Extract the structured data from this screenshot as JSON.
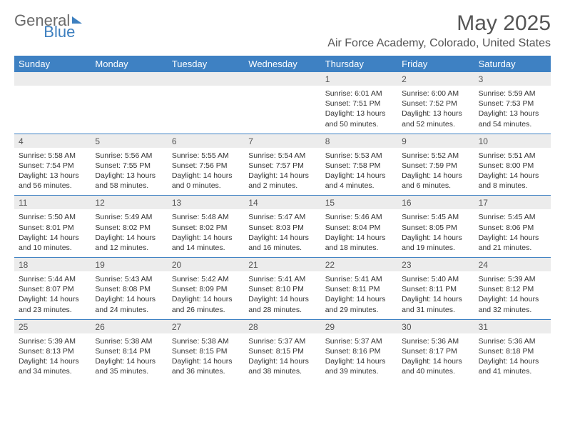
{
  "logo": {
    "part1": "General",
    "part2": "Blue"
  },
  "title": "May 2025",
  "subtitle": "Air Force Academy, Colorado, United States",
  "dayHeaders": [
    "Sunday",
    "Monday",
    "Tuesday",
    "Wednesday",
    "Thursday",
    "Friday",
    "Saturday"
  ],
  "colors": {
    "headerBg": "#3e81c3",
    "headerText": "#ffffff",
    "dayNumBg": "#ececec",
    "pageBg": "#ffffff",
    "titleColor": "#555555",
    "logoGray": "#6b6b6b",
    "logoBlue": "#3d7fbf"
  },
  "weeks": [
    {
      "nums": [
        "",
        "",
        "",
        "",
        "1",
        "2",
        "3"
      ],
      "cells": [
        null,
        null,
        null,
        null,
        {
          "sr": "Sunrise: 6:01 AM",
          "ss": "Sunset: 7:51 PM",
          "d1": "Daylight: 13 hours",
          "d2": "and 50 minutes."
        },
        {
          "sr": "Sunrise: 6:00 AM",
          "ss": "Sunset: 7:52 PM",
          "d1": "Daylight: 13 hours",
          "d2": "and 52 minutes."
        },
        {
          "sr": "Sunrise: 5:59 AM",
          "ss": "Sunset: 7:53 PM",
          "d1": "Daylight: 13 hours",
          "d2": "and 54 minutes."
        }
      ]
    },
    {
      "nums": [
        "4",
        "5",
        "6",
        "7",
        "8",
        "9",
        "10"
      ],
      "cells": [
        {
          "sr": "Sunrise: 5:58 AM",
          "ss": "Sunset: 7:54 PM",
          "d1": "Daylight: 13 hours",
          "d2": "and 56 minutes."
        },
        {
          "sr": "Sunrise: 5:56 AM",
          "ss": "Sunset: 7:55 PM",
          "d1": "Daylight: 13 hours",
          "d2": "and 58 minutes."
        },
        {
          "sr": "Sunrise: 5:55 AM",
          "ss": "Sunset: 7:56 PM",
          "d1": "Daylight: 14 hours",
          "d2": "and 0 minutes."
        },
        {
          "sr": "Sunrise: 5:54 AM",
          "ss": "Sunset: 7:57 PM",
          "d1": "Daylight: 14 hours",
          "d2": "and 2 minutes."
        },
        {
          "sr": "Sunrise: 5:53 AM",
          "ss": "Sunset: 7:58 PM",
          "d1": "Daylight: 14 hours",
          "d2": "and 4 minutes."
        },
        {
          "sr": "Sunrise: 5:52 AM",
          "ss": "Sunset: 7:59 PM",
          "d1": "Daylight: 14 hours",
          "d2": "and 6 minutes."
        },
        {
          "sr": "Sunrise: 5:51 AM",
          "ss": "Sunset: 8:00 PM",
          "d1": "Daylight: 14 hours",
          "d2": "and 8 minutes."
        }
      ]
    },
    {
      "nums": [
        "11",
        "12",
        "13",
        "14",
        "15",
        "16",
        "17"
      ],
      "cells": [
        {
          "sr": "Sunrise: 5:50 AM",
          "ss": "Sunset: 8:01 PM",
          "d1": "Daylight: 14 hours",
          "d2": "and 10 minutes."
        },
        {
          "sr": "Sunrise: 5:49 AM",
          "ss": "Sunset: 8:02 PM",
          "d1": "Daylight: 14 hours",
          "d2": "and 12 minutes."
        },
        {
          "sr": "Sunrise: 5:48 AM",
          "ss": "Sunset: 8:02 PM",
          "d1": "Daylight: 14 hours",
          "d2": "and 14 minutes."
        },
        {
          "sr": "Sunrise: 5:47 AM",
          "ss": "Sunset: 8:03 PM",
          "d1": "Daylight: 14 hours",
          "d2": "and 16 minutes."
        },
        {
          "sr": "Sunrise: 5:46 AM",
          "ss": "Sunset: 8:04 PM",
          "d1": "Daylight: 14 hours",
          "d2": "and 18 minutes."
        },
        {
          "sr": "Sunrise: 5:45 AM",
          "ss": "Sunset: 8:05 PM",
          "d1": "Daylight: 14 hours",
          "d2": "and 19 minutes."
        },
        {
          "sr": "Sunrise: 5:45 AM",
          "ss": "Sunset: 8:06 PM",
          "d1": "Daylight: 14 hours",
          "d2": "and 21 minutes."
        }
      ]
    },
    {
      "nums": [
        "18",
        "19",
        "20",
        "21",
        "22",
        "23",
        "24"
      ],
      "cells": [
        {
          "sr": "Sunrise: 5:44 AM",
          "ss": "Sunset: 8:07 PM",
          "d1": "Daylight: 14 hours",
          "d2": "and 23 minutes."
        },
        {
          "sr": "Sunrise: 5:43 AM",
          "ss": "Sunset: 8:08 PM",
          "d1": "Daylight: 14 hours",
          "d2": "and 24 minutes."
        },
        {
          "sr": "Sunrise: 5:42 AM",
          "ss": "Sunset: 8:09 PM",
          "d1": "Daylight: 14 hours",
          "d2": "and 26 minutes."
        },
        {
          "sr": "Sunrise: 5:41 AM",
          "ss": "Sunset: 8:10 PM",
          "d1": "Daylight: 14 hours",
          "d2": "and 28 minutes."
        },
        {
          "sr": "Sunrise: 5:41 AM",
          "ss": "Sunset: 8:11 PM",
          "d1": "Daylight: 14 hours",
          "d2": "and 29 minutes."
        },
        {
          "sr": "Sunrise: 5:40 AM",
          "ss": "Sunset: 8:11 PM",
          "d1": "Daylight: 14 hours",
          "d2": "and 31 minutes."
        },
        {
          "sr": "Sunrise: 5:39 AM",
          "ss": "Sunset: 8:12 PM",
          "d1": "Daylight: 14 hours",
          "d2": "and 32 minutes."
        }
      ]
    },
    {
      "nums": [
        "25",
        "26",
        "27",
        "28",
        "29",
        "30",
        "31"
      ],
      "cells": [
        {
          "sr": "Sunrise: 5:39 AM",
          "ss": "Sunset: 8:13 PM",
          "d1": "Daylight: 14 hours",
          "d2": "and 34 minutes."
        },
        {
          "sr": "Sunrise: 5:38 AM",
          "ss": "Sunset: 8:14 PM",
          "d1": "Daylight: 14 hours",
          "d2": "and 35 minutes."
        },
        {
          "sr": "Sunrise: 5:38 AM",
          "ss": "Sunset: 8:15 PM",
          "d1": "Daylight: 14 hours",
          "d2": "and 36 minutes."
        },
        {
          "sr": "Sunrise: 5:37 AM",
          "ss": "Sunset: 8:15 PM",
          "d1": "Daylight: 14 hours",
          "d2": "and 38 minutes."
        },
        {
          "sr": "Sunrise: 5:37 AM",
          "ss": "Sunset: 8:16 PM",
          "d1": "Daylight: 14 hours",
          "d2": "and 39 minutes."
        },
        {
          "sr": "Sunrise: 5:36 AM",
          "ss": "Sunset: 8:17 PM",
          "d1": "Daylight: 14 hours",
          "d2": "and 40 minutes."
        },
        {
          "sr": "Sunrise: 5:36 AM",
          "ss": "Sunset: 8:18 PM",
          "d1": "Daylight: 14 hours",
          "d2": "and 41 minutes."
        }
      ]
    }
  ]
}
